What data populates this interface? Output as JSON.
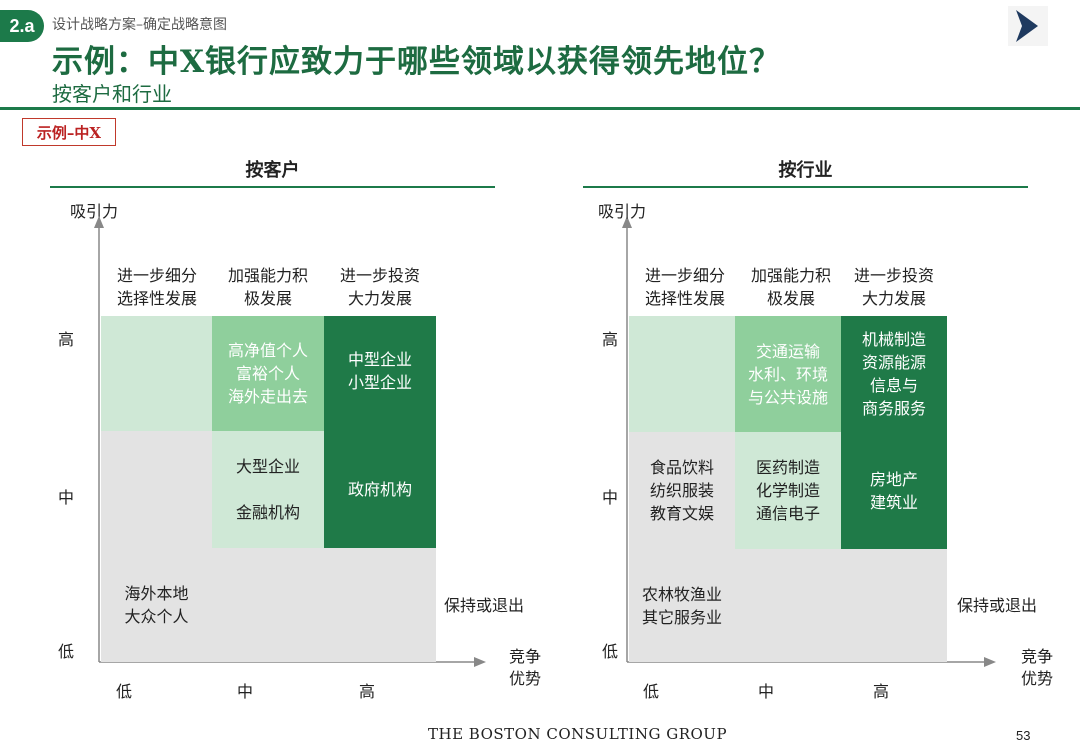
{
  "header": {
    "badge": "2.a",
    "breadcrumb": "设计战略方案–确定战略意图",
    "title": "示例：中X银行应致力于哪些领域以获得领先地位？",
    "subtitle": "按客户和行业",
    "example_tag": "示例–中X"
  },
  "colors": {
    "brand_green": "#1c7a4a",
    "light": "#cfe8d6",
    "mid": "#8fcf9c",
    "dark": "#1f7a48",
    "grey": "#e3e3e3"
  },
  "left_panel": {
    "title": "按客户",
    "y_axis": "吸引力",
    "x_axis": [
      "竞争",
      "优势"
    ],
    "column_headers": [
      [
        "进一步细分",
        "选择性发展"
      ],
      [
        "加强能力积",
        "极发展"
      ],
      [
        "进一步投资",
        "大力发展"
      ]
    ],
    "row_labels": [
      "高",
      "中",
      "低"
    ],
    "col_labels": [
      "低",
      "中",
      "高"
    ],
    "exit_label": "保持或退出",
    "cells": {
      "r0c0": [],
      "r0c1": [
        "高净值个人",
        "富裕个人",
        "海外走出去"
      ],
      "r0c2": [
        "中型企业",
        "小型企业"
      ],
      "r1c0": [],
      "r1c1": [
        "大型企业",
        "",
        "金融机构"
      ],
      "r1c2": [
        "政府机构"
      ],
      "r2c0": [
        "海外本地",
        "大众个人"
      ],
      "r2c1": [],
      "r2c2": []
    }
  },
  "right_panel": {
    "title": "按行业",
    "y_axis": "吸引力",
    "x_axis": [
      "竞争",
      "优势"
    ],
    "column_headers": [
      [
        "进一步细分",
        "选择性发展"
      ],
      [
        "加强能力积",
        "极发展"
      ],
      [
        "进一步投资",
        "大力发展"
      ]
    ],
    "row_labels": [
      "高",
      "中",
      "低"
    ],
    "col_labels": [
      "低",
      "中",
      "高"
    ],
    "exit_label": "保持或退出",
    "cells": {
      "r0c0": [],
      "r0c1": [
        "交通运输",
        "水利、环境",
        "与公共设施"
      ],
      "r0c2": [
        "机械制造",
        "资源能源",
        "信息与",
        "商务服务"
      ],
      "r1c0": [
        "食品饮料",
        "纺织服装",
        "教育文娱"
      ],
      "r1c1": [
        "医药制造",
        "化学制造",
        "通信电子"
      ],
      "r1c2": [
        "房地产",
        "建筑业"
      ],
      "r2c0": [
        "农林牧渔业",
        "其它服务业"
      ],
      "r2c1": [],
      "r2c2": []
    }
  },
  "footer": {
    "company": "THE BOSTON CONSULTING GROUP",
    "page": "53"
  }
}
